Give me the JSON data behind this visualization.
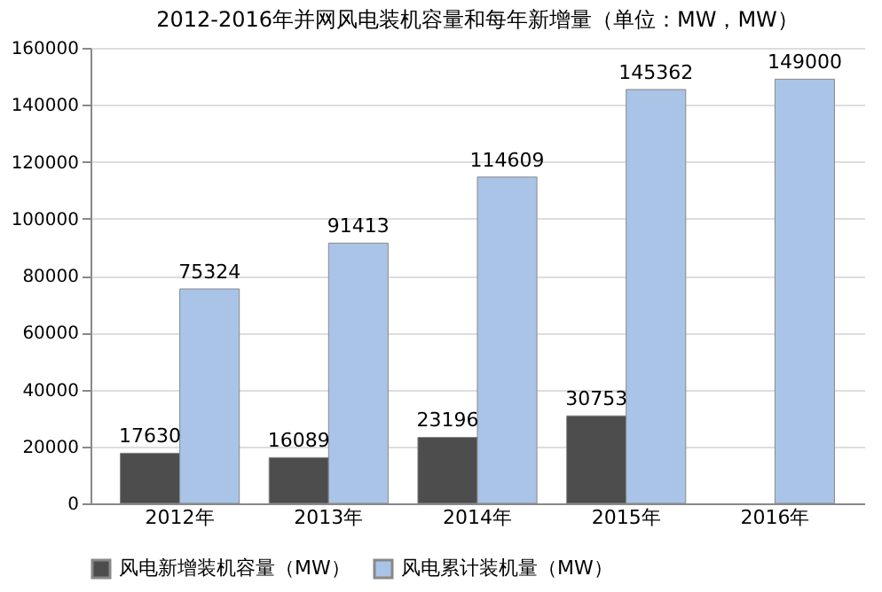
{
  "chart_data": {
    "type": "bar",
    "title": "2012-2016年并网风电装机容量和每年新增量（单位：MW，MW）",
    "categories": [
      "2012年",
      "2013年",
      "2014年",
      "2015年",
      "2016年"
    ],
    "series": [
      {
        "name": "风电新增装机容量（MW）",
        "color": "#4d4d4d",
        "values": [
          17630,
          16089,
          23196,
          30753,
          null
        ]
      },
      {
        "name": "风电累计装机量（MW）",
        "color": "#a9c4e6",
        "values": [
          75324,
          91413,
          114609,
          145362,
          149000
        ]
      }
    ],
    "ylim": [
      0,
      160000
    ],
    "yticks": [
      0,
      20000,
      40000,
      60000,
      80000,
      100000,
      120000,
      140000,
      160000
    ],
    "grid": "y",
    "legend": "bottom",
    "data_labels": true
  }
}
